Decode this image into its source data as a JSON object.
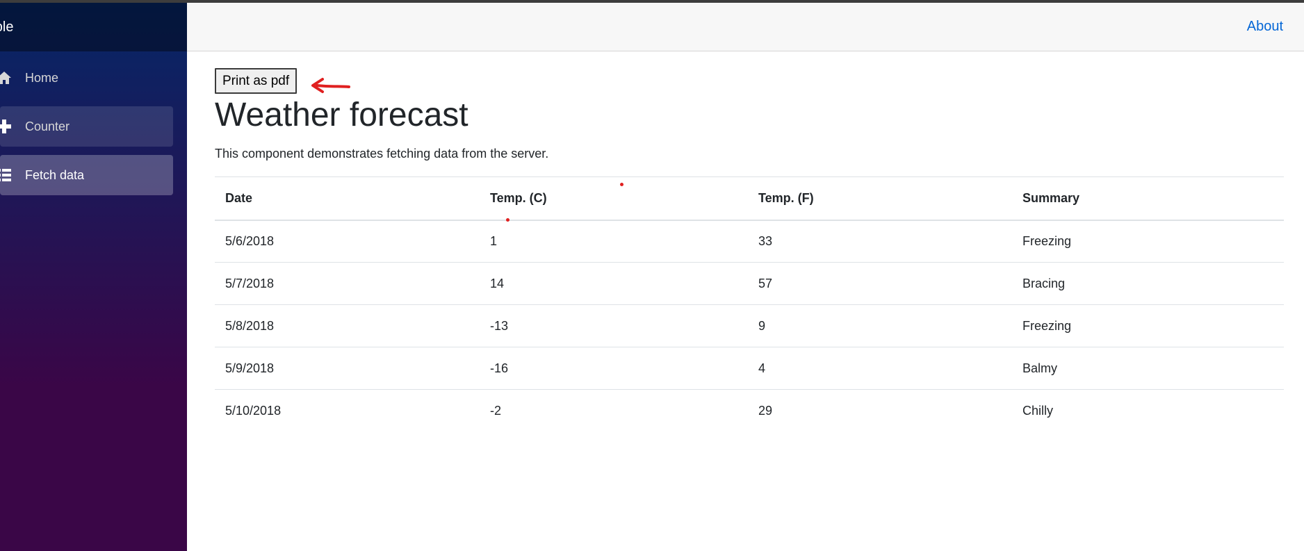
{
  "sidebar": {
    "brand": "ample",
    "items": [
      {
        "label": "Home",
        "icon": "home-icon"
      },
      {
        "label": "Counter",
        "icon": "plus-icon"
      },
      {
        "label": "Fetch data",
        "icon": "list-icon"
      }
    ]
  },
  "header": {
    "about": "About"
  },
  "main": {
    "print_button": "Print as pdf",
    "title": "Weather forecast",
    "description": "This component demonstrates fetching data from the server.",
    "table": {
      "headers": [
        "Date",
        "Temp. (C)",
        "Temp. (F)",
        "Summary"
      ],
      "rows": [
        [
          "5/6/2018",
          "1",
          "33",
          "Freezing"
        ],
        [
          "5/7/2018",
          "14",
          "57",
          "Bracing"
        ],
        [
          "5/8/2018",
          "-13",
          "9",
          "Freezing"
        ],
        [
          "5/9/2018",
          "-16",
          "4",
          "Balmy"
        ],
        [
          "5/10/2018",
          "-2",
          "29",
          "Chilly"
        ]
      ]
    }
  },
  "colors": {
    "link": "#0366d6",
    "sidebar_top": "#052767",
    "sidebar_bottom": "#3a0647",
    "annotation": "#e02020"
  }
}
